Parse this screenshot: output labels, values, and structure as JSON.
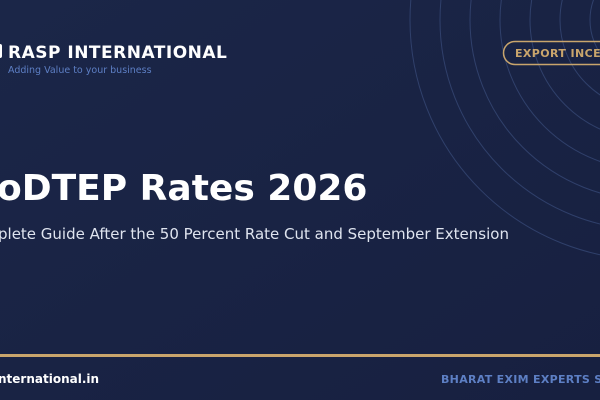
{
  "header": {
    "brand": "RASP INTERNATIONAL",
    "tagline": "Adding Value to your business",
    "badge": "EXPORT INCENT"
  },
  "hero": {
    "title": "oDTEP Rates 2026",
    "subtitle": "plete Guide After the 50 Percent Rate Cut and September Extension"
  },
  "footer": {
    "website": "nternational.in",
    "slogan": "BHARAT EXIM EXPERTS SINC"
  }
}
